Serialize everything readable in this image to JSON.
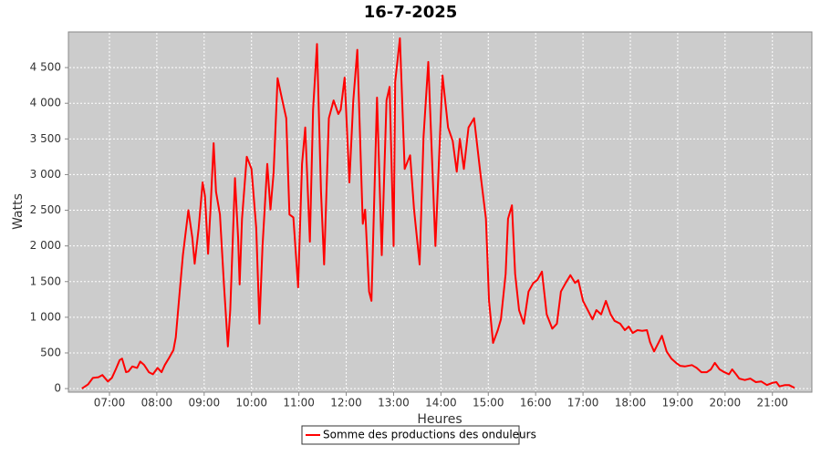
{
  "chart_data": {
    "type": "line",
    "title": "16-7-2025",
    "x_label": "Heures",
    "y_label": "Watts",
    "xlim": [
      "06:08",
      "21:50"
    ],
    "xticks": [
      "07:00",
      "08:00",
      "09:00",
      "10:00",
      "11:00",
      "12:00",
      "13:00",
      "14:00",
      "15:00",
      "16:00",
      "17:00",
      "18:00",
      "19:00",
      "20:00",
      "21:00"
    ],
    "ylim": [
      -50,
      5000
    ],
    "yticks": [
      0,
      500,
      {
        "value": 1000,
        "label": "1 000"
      },
      {
        "value": 1500,
        "label": "1 500"
      },
      {
        "value": 2000,
        "label": "2 000"
      },
      {
        "value": 2500,
        "label": "2 500"
      },
      {
        "value": 3000,
        "label": "3 000"
      },
      {
        "value": 3500,
        "label": "3 500"
      },
      {
        "value": 4000,
        "label": "4 000"
      },
      {
        "value": 4500,
        "label": "4 500"
      }
    ],
    "grid": true,
    "legend": "bottom",
    "x": [
      "06:25",
      "06:33",
      "06:39",
      "06:46",
      "06:51",
      "06:58",
      "07:03",
      "07:08",
      "07:13",
      "07:16",
      "07:21",
      "07:24",
      "07:29",
      "07:35",
      "07:39",
      "07:44",
      "07:50",
      "07:55",
      "08:01",
      "08:06",
      "08:10",
      "08:15",
      "08:21",
      "08:24",
      "08:29",
      "08:33",
      "08:40",
      "08:45",
      "08:48",
      "08:53",
      "08:58",
      "09:01",
      "09:05",
      "09:08",
      "09:12",
      "09:15",
      "09:20",
      "09:25",
      "09:30",
      "09:33",
      "09:39",
      "09:43",
      "09:45",
      "09:48",
      "09:54",
      "10:00",
      "10:06",
      "10:10",
      "10:14",
      "10:20",
      "10:24",
      "10:28",
      "10:33",
      "10:39",
      "10:44",
      "10:48",
      "10:53",
      "10:59",
      "11:04",
      "11:08",
      "11:14",
      "11:18",
      "11:23",
      "11:28",
      "11:32",
      "11:38",
      "11:44",
      "11:50",
      "11:53",
      "11:58",
      "12:04",
      "12:09",
      "12:14",
      "12:21",
      "12:24",
      "12:29",
      "12:32",
      "12:39",
      "12:45",
      "12:51",
      "12:55",
      "13:00",
      "13:02",
      "13:08",
      "13:14",
      "13:21",
      "13:26",
      "13:33",
      "13:38",
      "13:44",
      "13:53",
      "14:02",
      "14:09",
      "14:15",
      "14:20",
      "14:24",
      "14:29",
      "14:35",
      "14:42",
      "14:50",
      "14:57",
      "15:01",
      "15:06",
      "15:12",
      "15:16",
      "15:22",
      "15:25",
      "15:30",
      "15:34",
      "15:39",
      "15:45",
      "15:51",
      "15:57",
      "16:02",
      "16:08",
      "16:14",
      "16:21",
      "16:27",
      "16:32",
      "16:38",
      "16:44",
      "16:50",
      "16:54",
      "17:00",
      "17:06",
      "17:12",
      "17:17",
      "17:23",
      "17:29",
      "17:35",
      "17:40",
      "17:47",
      "17:53",
      "17:58",
      "18:03",
      "18:09",
      "18:15",
      "18:21",
      "18:25",
      "18:30",
      "18:36",
      "18:40",
      "18:46",
      "18:52",
      "18:58",
      "19:03",
      "19:09",
      "19:18",
      "19:24",
      "19:30",
      "19:37",
      "19:42",
      "19:47",
      "19:53",
      "19:59",
      "20:05",
      "20:09",
      "20:14",
      "20:18",
      "20:25",
      "20:32",
      "20:39",
      "20:46",
      "20:53",
      "21:00",
      "21:05",
      "21:09",
      "21:16",
      "21:21",
      "21:28"
    ],
    "series": [
      {
        "name": "Somme des productions des onduleurs",
        "color": "#ff0000",
        "values": [
          0,
          60,
          150,
          160,
          190,
          100,
          150,
          270,
          400,
          420,
          230,
          240,
          310,
          290,
          380,
          330,
          230,
          200,
          290,
          230,
          330,
          420,
          540,
          720,
          1360,
          1870,
          2500,
          2120,
          1750,
          2250,
          2890,
          2700,
          1890,
          2500,
          3440,
          2760,
          2440,
          1480,
          590,
          1100,
          2950,
          2120,
          1460,
          2380,
          3250,
          3080,
          2250,
          910,
          2000,
          3150,
          2510,
          3020,
          4350,
          4040,
          3790,
          2440,
          2400,
          1420,
          3150,
          3660,
          2060,
          3910,
          4830,
          2760,
          1740,
          3790,
          4040,
          3850,
          3910,
          4360,
          2890,
          4040,
          4750,
          2310,
          2510,
          1360,
          1230,
          4080,
          1870,
          4040,
          4230,
          2000,
          4300,
          4910,
          3080,
          3270,
          2510,
          1740,
          3530,
          4580,
          2000,
          4390,
          3660,
          3470,
          3040,
          3500,
          3080,
          3660,
          3790,
          3020,
          2380,
          1230,
          640,
          820,
          970,
          1610,
          2380,
          2570,
          1610,
          1100,
          910,
          1360,
          1480,
          1520,
          1640,
          1040,
          840,
          910,
          1360,
          1480,
          1590,
          1480,
          1520,
          1230,
          1100,
          970,
          1100,
          1040,
          1230,
          1040,
          950,
          910,
          820,
          870,
          780,
          820,
          810,
          820,
          650,
          520,
          650,
          740,
          520,
          420,
          360,
          320,
          310,
          330,
          290,
          230,
          230,
          270,
          360,
          270,
          230,
          200,
          270,
          200,
          140,
          120,
          140,
          90,
          100,
          50,
          80,
          90,
          30,
          50,
          50,
          10
        ]
      }
    ]
  }
}
